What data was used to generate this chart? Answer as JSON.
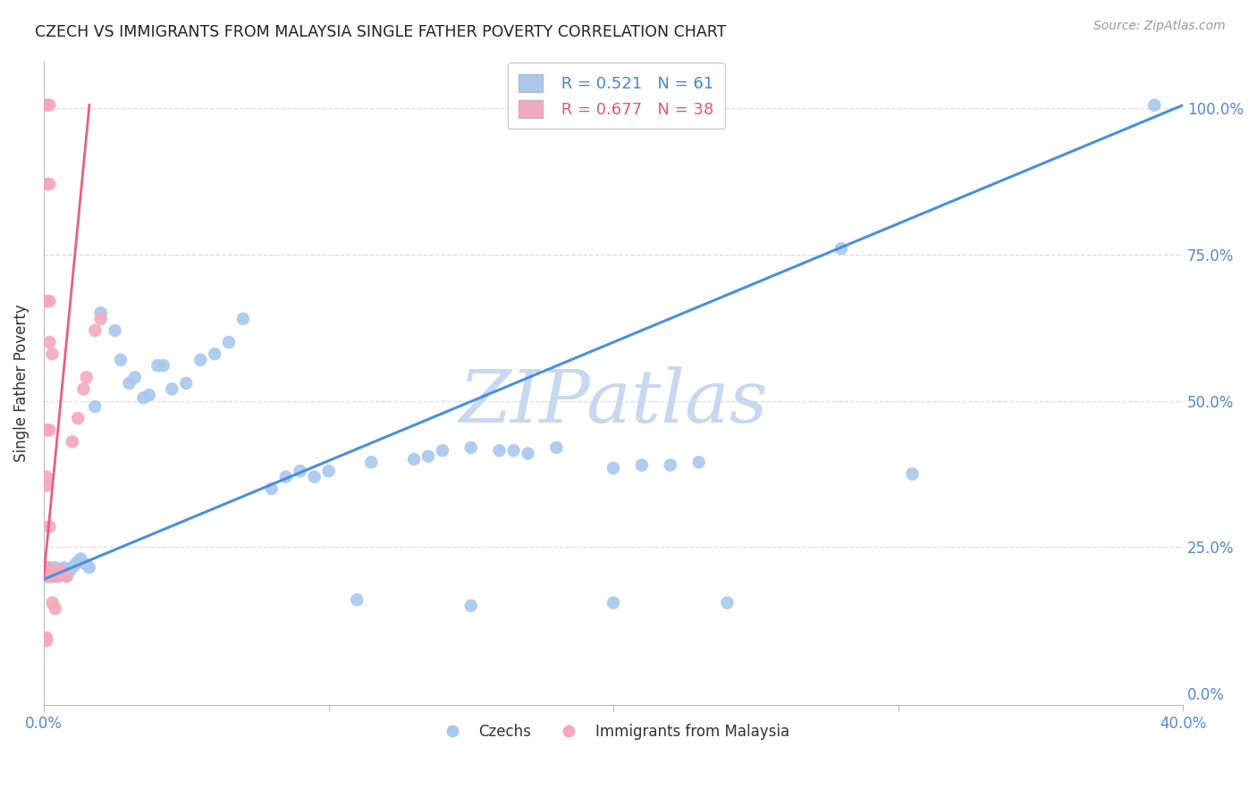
{
  "title": "CZECH VS IMMIGRANTS FROM MALAYSIA SINGLE FATHER POVERTY CORRELATION CHART",
  "source": "Source: ZipAtlas.com",
  "ylabel": "Single Father Poverty",
  "xlim": [
    0.0,
    0.4
  ],
  "ylim": [
    -0.02,
    1.08
  ],
  "legend_blue_R": "R = 0.521",
  "legend_blue_N": "N = 61",
  "legend_pink_R": "R = 0.677",
  "legend_pink_N": "N = 38",
  "legend_blue_label": "Czechs",
  "legend_pink_label": "Immigrants from Malaysia",
  "blue_color": "#A8C8EE",
  "pink_color": "#F4A8BC",
  "blue_line_color": "#4A90D9",
  "pink_line_color": "#E8607A",
  "blue_scatter": [
    [
      0.001,
      0.2
    ],
    [
      0.001,
      0.21
    ],
    [
      0.002,
      0.215
    ],
    [
      0.002,
      0.205
    ],
    [
      0.003,
      0.2
    ],
    [
      0.003,
      0.21
    ],
    [
      0.004,
      0.215
    ],
    [
      0.005,
      0.205
    ],
    [
      0.005,
      0.2
    ],
    [
      0.006,
      0.21
    ],
    [
      0.007,
      0.215
    ],
    [
      0.007,
      0.205
    ],
    [
      0.008,
      0.2
    ],
    [
      0.009,
      0.21
    ],
    [
      0.01,
      0.215
    ],
    [
      0.011,
      0.22
    ],
    [
      0.012,
      0.225
    ],
    [
      0.013,
      0.23
    ],
    [
      0.015,
      0.22
    ],
    [
      0.016,
      0.215
    ],
    [
      0.018,
      0.49
    ],
    [
      0.02,
      0.65
    ],
    [
      0.025,
      0.62
    ],
    [
      0.027,
      0.57
    ],
    [
      0.03,
      0.53
    ],
    [
      0.032,
      0.54
    ],
    [
      0.035,
      0.505
    ],
    [
      0.037,
      0.51
    ],
    [
      0.04,
      0.56
    ],
    [
      0.042,
      0.56
    ],
    [
      0.045,
      0.52
    ],
    [
      0.05,
      0.53
    ],
    [
      0.055,
      0.57
    ],
    [
      0.06,
      0.58
    ],
    [
      0.065,
      0.6
    ],
    [
      0.07,
      0.64
    ],
    [
      0.08,
      0.35
    ],
    [
      0.085,
      0.37
    ],
    [
      0.09,
      0.38
    ],
    [
      0.095,
      0.37
    ],
    [
      0.1,
      0.38
    ],
    [
      0.115,
      0.395
    ],
    [
      0.13,
      0.4
    ],
    [
      0.135,
      0.405
    ],
    [
      0.14,
      0.415
    ],
    [
      0.15,
      0.42
    ],
    [
      0.16,
      0.415
    ],
    [
      0.165,
      0.415
    ],
    [
      0.17,
      0.41
    ],
    [
      0.18,
      0.42
    ],
    [
      0.11,
      0.16
    ],
    [
      0.15,
      0.15
    ],
    [
      0.2,
      0.155
    ],
    [
      0.24,
      0.155
    ],
    [
      0.2,
      0.385
    ],
    [
      0.21,
      0.39
    ],
    [
      0.22,
      0.39
    ],
    [
      0.23,
      0.395
    ],
    [
      0.28,
      0.76
    ],
    [
      0.305,
      0.375
    ],
    [
      0.39,
      1.005
    ]
  ],
  "pink_scatter": [
    [
      0.001,
      0.2
    ],
    [
      0.001,
      0.21
    ],
    [
      0.001,
      0.215
    ],
    [
      0.002,
      0.205
    ],
    [
      0.002,
      0.2
    ],
    [
      0.002,
      0.21
    ],
    [
      0.003,
      0.205
    ],
    [
      0.003,
      0.2
    ],
    [
      0.004,
      0.205
    ],
    [
      0.004,
      0.21
    ],
    [
      0.005,
      0.2
    ],
    [
      0.005,
      0.205
    ],
    [
      0.006,
      0.21
    ],
    [
      0.007,
      0.205
    ],
    [
      0.008,
      0.2
    ],
    [
      0.001,
      1.005
    ],
    [
      0.002,
      1.005
    ],
    [
      0.001,
      0.87
    ],
    [
      0.002,
      0.87
    ],
    [
      0.001,
      0.67
    ],
    [
      0.002,
      0.67
    ],
    [
      0.001,
      0.45
    ],
    [
      0.002,
      0.45
    ],
    [
      0.001,
      0.37
    ],
    [
      0.001,
      0.355
    ],
    [
      0.002,
      0.285
    ],
    [
      0.003,
      0.155
    ],
    [
      0.004,
      0.145
    ],
    [
      0.002,
      0.6
    ],
    [
      0.003,
      0.58
    ],
    [
      0.01,
      0.43
    ],
    [
      0.012,
      0.47
    ],
    [
      0.014,
      0.52
    ],
    [
      0.015,
      0.54
    ],
    [
      0.018,
      0.62
    ],
    [
      0.02,
      0.64
    ],
    [
      0.001,
      0.095
    ],
    [
      0.001,
      0.09
    ]
  ],
  "blue_reg_line": [
    [
      0.0,
      0.195
    ],
    [
      0.4,
      1.005
    ]
  ],
  "pink_reg_line": [
    [
      0.0,
      0.2
    ],
    [
      0.016,
      1.005
    ]
  ],
  "watermark": "ZIPatlas",
  "watermark_color": "#C8D8F0",
  "background_color": "#FFFFFF",
  "grid_color": "#DDDDDD",
  "yticks": [
    0.0,
    0.25,
    0.5,
    0.75,
    1.0
  ],
  "ytick_right_labels": [
    "0.0%",
    "25.0%",
    "50.0%",
    "75.0%",
    "100.0%"
  ],
  "xtick_positions": [
    0.0,
    0.4
  ],
  "xtick_labels": [
    "0.0%",
    "40.0%"
  ]
}
